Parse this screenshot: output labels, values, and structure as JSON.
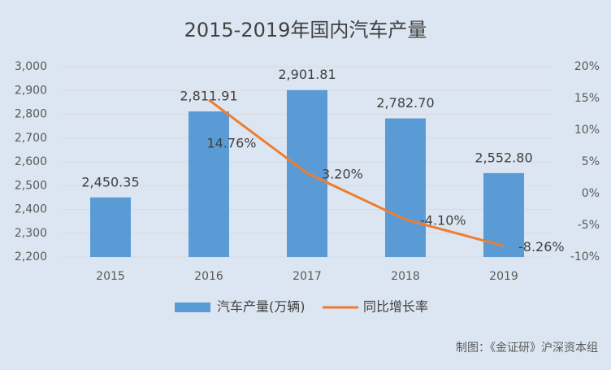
{
  "chart_data": {
    "type": "bar",
    "title": "2015-2019年国内汽车产量",
    "annotation": "制图：《金证研》沪深资本组",
    "categories": [
      "2015",
      "2016",
      "2017",
      "2018",
      "2019"
    ],
    "series": [
      {
        "name": "汽车产量(万辆)",
        "type": "bar",
        "color": "#5b9bd5",
        "values": [
          2450.35,
          2811.91,
          2901.81,
          2782.7,
          2552.8
        ],
        "value_labels": [
          "2,450.35",
          "2,811.91",
          "2,901.81",
          "2,782.70",
          "2,552.80"
        ]
      },
      {
        "name": "同比增长率",
        "type": "line",
        "axis": "y2",
        "color": "#ed7d31",
        "values": [
          null,
          14.76,
          3.2,
          -4.1,
          -8.26
        ],
        "value_labels": [
          null,
          "14.76%",
          "3.20%",
          "-4.10%",
          "-8.26%"
        ]
      }
    ],
    "ylim": [
      2200,
      3000
    ],
    "yticks": [
      {
        "value": 2200,
        "label": "2,200"
      },
      {
        "value": 2300,
        "label": "2,300"
      },
      {
        "value": 2400,
        "label": "2,400"
      },
      {
        "value": 2500,
        "label": "2,500"
      },
      {
        "value": 2600,
        "label": "2,600"
      },
      {
        "value": 2700,
        "label": "2,700"
      },
      {
        "value": 2800,
        "label": "2,800"
      },
      {
        "value": 2900,
        "label": "2,900"
      },
      {
        "value": 3000,
        "label": "3,000"
      }
    ],
    "y2lim": [
      -10,
      20
    ],
    "y2ticks": [
      {
        "value": -10,
        "label": "-10%"
      },
      {
        "value": -5,
        "label": "-5%"
      },
      {
        "value": 0,
        "label": "0%"
      },
      {
        "value": 5,
        "label": "5%"
      },
      {
        "value": 10,
        "label": "10%"
      },
      {
        "value": 15,
        "label": "15%"
      },
      {
        "value": 20,
        "label": "20%"
      }
    ],
    "legend": "bottom"
  }
}
